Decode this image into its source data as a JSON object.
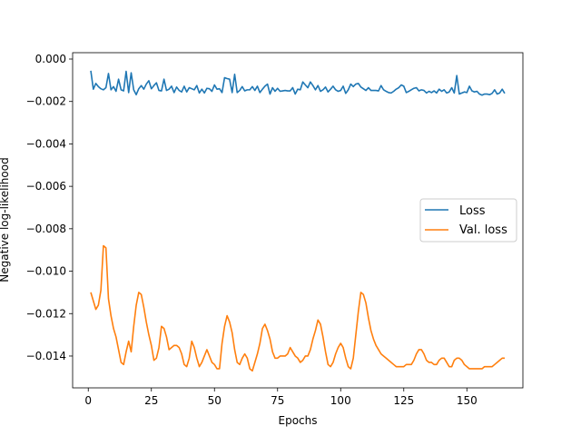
{
  "chart_data": {
    "type": "line",
    "title": "",
    "xlabel": "Epochs",
    "ylabel": "Negative log-likelihood",
    "xlim": [
      -6.2,
      172.2
    ],
    "ylim": [
      -0.0155,
      0.0003
    ],
    "x_ticks": [
      0,
      25,
      50,
      75,
      100,
      125,
      150
    ],
    "y_ticks": [
      0.0,
      -0.002,
      -0.004,
      -0.006,
      -0.008,
      -0.01,
      -0.012,
      -0.014
    ],
    "x_tick_labels": [
      "0",
      "25",
      "50",
      "75",
      "100",
      "125",
      "150"
    ],
    "y_tick_labels": [
      "0.000",
      "−0.002",
      "−0.004",
      "−0.006",
      "−0.008",
      "−0.010",
      "−0.012",
      "−0.014"
    ],
    "grid": false,
    "legend_position": "center-right",
    "x": [
      1,
      2,
      3,
      4,
      5,
      6,
      7,
      8,
      9,
      10,
      11,
      12,
      13,
      14,
      15,
      16,
      17,
      18,
      19,
      20,
      21,
      22,
      23,
      24,
      25,
      26,
      27,
      28,
      29,
      30,
      31,
      32,
      33,
      34,
      35,
      36,
      37,
      38,
      39,
      40,
      41,
      42,
      43,
      44,
      45,
      46,
      47,
      48,
      49,
      50,
      51,
      52,
      53,
      54,
      55,
      56,
      57,
      58,
      59,
      60,
      61,
      62,
      63,
      64,
      65,
      66,
      67,
      68,
      69,
      70,
      71,
      72,
      73,
      74,
      75,
      76,
      77,
      78,
      79,
      80,
      81,
      82,
      83,
      84,
      85,
      86,
      87,
      88,
      89,
      90,
      91,
      92,
      93,
      94,
      95,
      96,
      97,
      98,
      99,
      100,
      101,
      102,
      103,
      104,
      105,
      106,
      107,
      108,
      109,
      110,
      111,
      112,
      113,
      114,
      115,
      116,
      117,
      118,
      119,
      120,
      121,
      122,
      123,
      124,
      125,
      126,
      127,
      128,
      129,
      130,
      131,
      132,
      133,
      134,
      135,
      136,
      137,
      138,
      139,
      140,
      141,
      142,
      143,
      144,
      145,
      146,
      147,
      148,
      149,
      150,
      151,
      152,
      153,
      154,
      155,
      156,
      157,
      158,
      159,
      160,
      161,
      162,
      163,
      164,
      165
    ],
    "series": [
      {
        "name": "Loss",
        "color": "#1f77b4",
        "values": [
          -0.00055,
          -0.00142,
          -0.00115,
          -0.0013,
          -0.0014,
          -0.00145,
          -0.00135,
          -0.00068,
          -0.00145,
          -0.0013,
          -0.00152,
          -0.00095,
          -0.00145,
          -0.0015,
          -0.00058,
          -0.00158,
          -0.00065,
          -0.00145,
          -0.00168,
          -0.0014,
          -0.00125,
          -0.00142,
          -0.00118,
          -0.00102,
          -0.0014,
          -0.00125,
          -0.00112,
          -0.00148,
          -0.0015,
          -0.00095,
          -0.00148,
          -0.00142,
          -0.00128,
          -0.00158,
          -0.00132,
          -0.00148,
          -0.00155,
          -0.00128,
          -0.00155,
          -0.00135,
          -0.0014,
          -0.00145,
          -0.00125,
          -0.0016,
          -0.00142,
          -0.0016,
          -0.00138,
          -0.0014,
          -0.00152,
          -0.00122,
          -0.00142,
          -0.0014,
          -0.00158,
          -0.00088,
          -0.00092,
          -0.00095,
          -0.00158,
          -0.00072,
          -0.00158,
          -0.00148,
          -0.0013,
          -0.0015,
          -0.00145,
          -0.00145,
          -0.0013,
          -0.00148,
          -0.00128,
          -0.00158,
          -0.00142,
          -0.00128,
          -0.00118,
          -0.00165,
          -0.00135,
          -0.00152,
          -0.00138,
          -0.00152,
          -0.0015,
          -0.00148,
          -0.0015,
          -0.0015,
          -0.00135,
          -0.00165,
          -0.00142,
          -0.00145,
          -0.00108,
          -0.00122,
          -0.00135,
          -0.00108,
          -0.00125,
          -0.00145,
          -0.00125,
          -0.00152,
          -0.00145,
          -0.00132,
          -0.00155,
          -0.00142,
          -0.00128,
          -0.00145,
          -0.00152,
          -0.00148,
          -0.00128,
          -0.00162,
          -0.00145,
          -0.00118,
          -0.0013,
          -0.00118,
          -0.00115,
          -0.00132,
          -0.0014,
          -0.00148,
          -0.00135,
          -0.00148,
          -0.00148,
          -0.00148,
          -0.0015,
          -0.00125,
          -0.00145,
          -0.00152,
          -0.00158,
          -0.0016,
          -0.00152,
          -0.00142,
          -0.00135,
          -0.00122,
          -0.00128,
          -0.00158,
          -0.00152,
          -0.00145,
          -0.00138,
          -0.00135,
          -0.0015,
          -0.00145,
          -0.00148,
          -0.0016,
          -0.00152,
          -0.00158,
          -0.0015,
          -0.0016,
          -0.00142,
          -0.00152,
          -0.00145,
          -0.0016,
          -0.00155,
          -0.00135,
          -0.0016,
          -0.00078,
          -0.00165,
          -0.0016,
          -0.00155,
          -0.00158,
          -0.00128,
          -0.0015,
          -0.00155,
          -0.00152,
          -0.00165,
          -0.0017,
          -0.00165,
          -0.00165,
          -0.00168,
          -0.00162,
          -0.00145,
          -0.00165,
          -0.0016,
          -0.00142,
          -0.00162
        ]
      },
      {
        "name": "Val. loss",
        "color": "#ff7f0e",
        "values": [
          -0.011,
          -0.0114,
          -0.0118,
          -0.0116,
          -0.0109,
          -0.0088,
          -0.0089,
          -0.0113,
          -0.0121,
          -0.0127,
          -0.0131,
          -0.0137,
          -0.0143,
          -0.0144,
          -0.0138,
          -0.0133,
          -0.0138,
          -0.0126,
          -0.0116,
          -0.011,
          -0.0111,
          -0.0117,
          -0.0124,
          -0.013,
          -0.0135,
          -0.0142,
          -0.0141,
          -0.0136,
          -0.0126,
          -0.0127,
          -0.0131,
          -0.0137,
          -0.0136,
          -0.0135,
          -0.0135,
          -0.0136,
          -0.0139,
          -0.0144,
          -0.0145,
          -0.0141,
          -0.0133,
          -0.0136,
          -0.0141,
          -0.0145,
          -0.0143,
          -0.014,
          -0.0137,
          -0.014,
          -0.0143,
          -0.0144,
          -0.0146,
          -0.0146,
          -0.0134,
          -0.0126,
          -0.0121,
          -0.0124,
          -0.0129,
          -0.0137,
          -0.0143,
          -0.0144,
          -0.0141,
          -0.0139,
          -0.0141,
          -0.0146,
          -0.0147,
          -0.0143,
          -0.0139,
          -0.0134,
          -0.0127,
          -0.0125,
          -0.0128,
          -0.0132,
          -0.0138,
          -0.0141,
          -0.0141,
          -0.014,
          -0.014,
          -0.014,
          -0.0139,
          -0.0136,
          -0.0138,
          -0.014,
          -0.0141,
          -0.0143,
          -0.0142,
          -0.014,
          -0.014,
          -0.0137,
          -0.0132,
          -0.0128,
          -0.0123,
          -0.0125,
          -0.0131,
          -0.0138,
          -0.0144,
          -0.0145,
          -0.0143,
          -0.0139,
          -0.0136,
          -0.0134,
          -0.0136,
          -0.0141,
          -0.0145,
          -0.0146,
          -0.0141,
          -0.013,
          -0.0119,
          -0.011,
          -0.0111,
          -0.0115,
          -0.0122,
          -0.0128,
          -0.0132,
          -0.0135,
          -0.0137,
          -0.0139,
          -0.014,
          -0.0141,
          -0.0142,
          -0.0143,
          -0.0144,
          -0.0145,
          -0.0145,
          -0.0145,
          -0.0145,
          -0.0144,
          -0.0144,
          -0.0144,
          -0.0142,
          -0.0139,
          -0.0137,
          -0.0137,
          -0.0139,
          -0.0142,
          -0.0143,
          -0.0143,
          -0.0144,
          -0.0144,
          -0.0142,
          -0.0141,
          -0.0141,
          -0.0143,
          -0.0145,
          -0.0145,
          -0.0142,
          -0.0141,
          -0.0141,
          -0.0142,
          -0.0144,
          -0.0145,
          -0.0146,
          -0.0146,
          -0.0146,
          -0.0146,
          -0.0146,
          -0.0146,
          -0.0145,
          -0.0145,
          -0.0145,
          -0.0145,
          -0.0144,
          -0.0143,
          -0.0142,
          -0.0141,
          -0.0141
        ]
      }
    ]
  }
}
